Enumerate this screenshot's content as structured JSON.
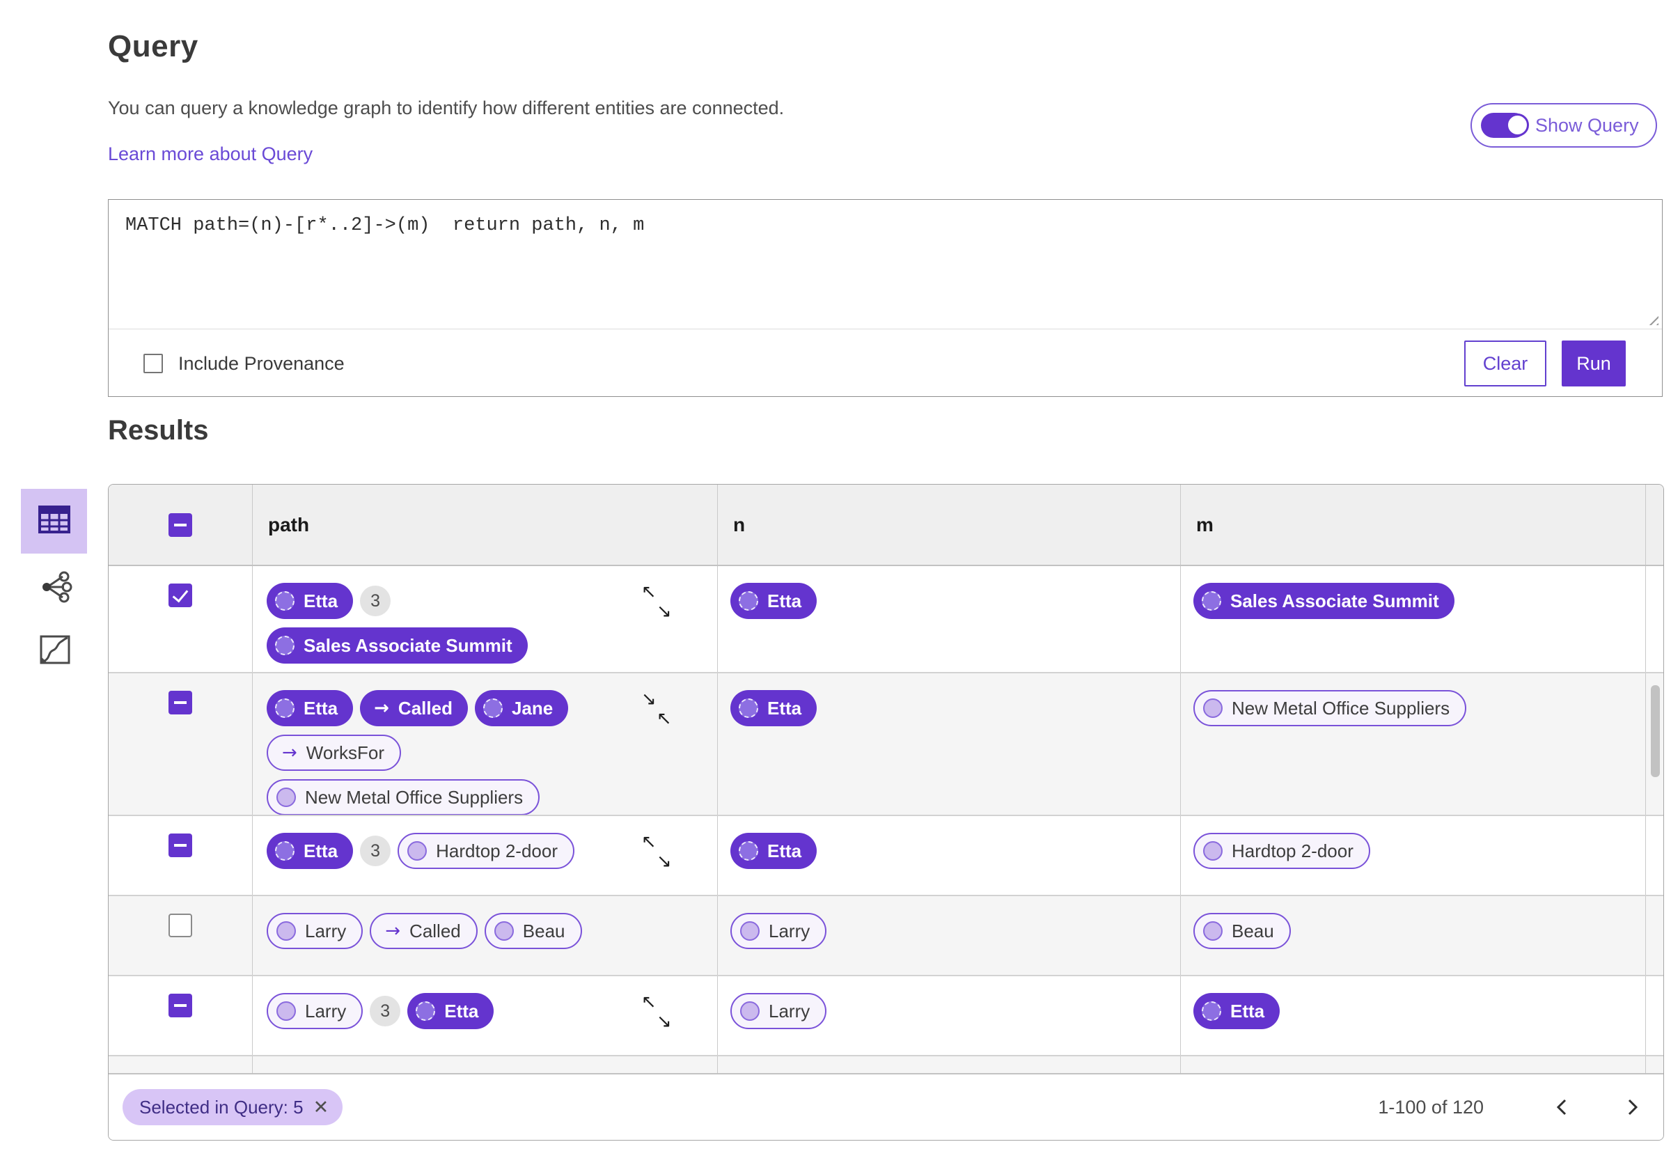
{
  "header": {
    "title": "Query",
    "description": "You can query a knowledge graph to identify how different entities are connected.",
    "learn_more_label": "Learn more about Query",
    "show_query_label": "Show Query",
    "show_query_state": "on"
  },
  "query_panel": {
    "query_text": "MATCH path=(n)-[r*..2]->(m)  return path, n, m",
    "include_provenance_label": "Include Provenance",
    "include_provenance_checked": false,
    "clear_label": "Clear",
    "run_label": "Run"
  },
  "results": {
    "heading": "Results",
    "view_switcher": [
      "table-view",
      "graph-view",
      "map-view"
    ],
    "active_view": "table-view",
    "columns": {
      "path": "path",
      "n": "n",
      "m": "m"
    },
    "select_all_state": "indeterminate",
    "rows": [
      {
        "checkbox": "checked",
        "path": [
          [
            {
              "kind": "node",
              "style": "solid",
              "label": "Etta"
            },
            {
              "kind": "count",
              "label": "3"
            }
          ],
          [
            {
              "kind": "node",
              "style": "solid",
              "label": "Sales Associate Summit"
            }
          ]
        ],
        "corner_icon": "expand",
        "n": {
          "kind": "node",
          "style": "solid",
          "label": "Etta"
        },
        "m": {
          "kind": "node",
          "style": "solid",
          "label": "Sales Associate Summit"
        }
      },
      {
        "checkbox": "indeterminate",
        "path": [
          [
            {
              "kind": "node",
              "style": "solid",
              "label": "Etta"
            },
            {
              "kind": "edge",
              "style": "solid",
              "label": "Called"
            },
            {
              "kind": "node",
              "style": "solid",
              "label": "Jane"
            }
          ],
          [
            {
              "kind": "edge",
              "style": "outlined",
              "label": "WorksFor"
            }
          ],
          [
            {
              "kind": "node",
              "style": "outlined",
              "label": "New Metal Office Suppliers"
            }
          ]
        ],
        "corner_icon": "collapse",
        "n": {
          "kind": "node",
          "style": "solid",
          "label": "Etta"
        },
        "m": {
          "kind": "node",
          "style": "outlined",
          "label": "New Metal Office Suppliers"
        }
      },
      {
        "checkbox": "indeterminate",
        "path": [
          [
            {
              "kind": "node",
              "style": "solid",
              "label": "Etta"
            },
            {
              "kind": "count",
              "label": "3"
            },
            {
              "kind": "node",
              "style": "outlined",
              "label": "Hardtop 2-door"
            }
          ]
        ],
        "corner_icon": "expand",
        "n": {
          "kind": "node",
          "style": "solid",
          "label": "Etta"
        },
        "m": {
          "kind": "node",
          "style": "outlined",
          "label": "Hardtop 2-door"
        }
      },
      {
        "checkbox": "unchecked",
        "path": [
          [
            {
              "kind": "node",
              "style": "outlined",
              "label": "Larry"
            },
            {
              "kind": "edge",
              "style": "outlined",
              "label": "Called"
            },
            {
              "kind": "node",
              "style": "outlined",
              "label": "Beau"
            }
          ]
        ],
        "corner_icon": null,
        "n": {
          "kind": "node",
          "style": "outlined",
          "label": "Larry"
        },
        "m": {
          "kind": "node",
          "style": "outlined",
          "label": "Beau"
        }
      },
      {
        "checkbox": "indeterminate",
        "path": [
          [
            {
              "kind": "node",
              "style": "outlined",
              "label": "Larry"
            },
            {
              "kind": "count",
              "label": "3"
            },
            {
              "kind": "node",
              "style": "solid",
              "label": "Etta"
            }
          ]
        ],
        "corner_icon": "expand",
        "n": {
          "kind": "node",
          "style": "outlined",
          "label": "Larry"
        },
        "m": {
          "kind": "node",
          "style": "solid",
          "label": "Etta"
        }
      },
      {
        "checkbox": null,
        "clipped": true,
        "path": [
          [
            {
              "kind": "node",
              "style": "outlined",
              "label": "",
              "min_w": 120
            },
            {
              "kind": "count",
              "label": ""
            },
            {
              "kind": "node",
              "style": "outlined",
              "label": "",
              "min_w": 215
            }
          ]
        ],
        "corner_icon": null,
        "n": {
          "kind": "node",
          "style": "outlined",
          "label": "",
          "min_w": 120
        },
        "m": {
          "kind": "node",
          "style": "outlined",
          "label": "",
          "min_w": 205
        }
      }
    ],
    "footer": {
      "selection_chip": "Selected in Query: 5",
      "close_icon": "✕",
      "range_label": "1-100 of 120"
    }
  },
  "colors": {
    "primary_purple": "#6434CE",
    "outline_purple": "#7A52D9",
    "chip_bg": "#D8C5F6",
    "selected_tile_bg": "#D4C3F3",
    "link_purple": "#6A4AD6",
    "table_header_bg": "#EFEFEF",
    "zebra_row_bg": "#F5F5F5",
    "node_circle_solid": "#8D6FE2",
    "node_circle_outlined": "#CBB9EE"
  }
}
